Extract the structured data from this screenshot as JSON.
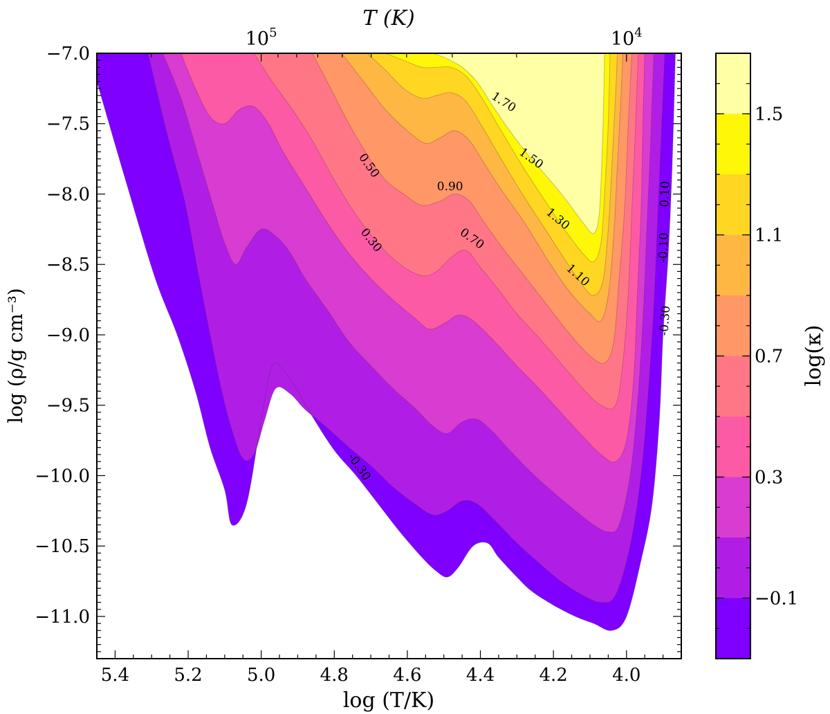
{
  "chart_data": {
    "type": "filled-contour",
    "title": "",
    "xlabel": "log (T/K)",
    "ylabel": "log (ρ/g cm⁻³)",
    "top_xlabel": "T (K)",
    "colorbar_label": "log(κ)",
    "xlim": [
      5.45,
      3.85
    ],
    "ylim": [
      -11.3,
      -7.0
    ],
    "x_ticks": [
      5.4,
      5.2,
      5.0,
      4.8,
      4.6,
      4.4,
      4.2,
      4.0
    ],
    "x_tick_labels": [
      "5.4",
      "5.2",
      "5.0",
      "4.8",
      "4.6",
      "4.4",
      "4.2",
      "4.0"
    ],
    "y_ticks": [
      -7.0,
      -7.5,
      -8.0,
      -8.5,
      -9.0,
      -9.5,
      -10.0,
      -10.5,
      -11.0
    ],
    "y_tick_labels": [
      "−7.0",
      "−7.5",
      "−8.0",
      "−8.5",
      "−9.0",
      "−9.5",
      "−10.0",
      "−10.5",
      "−11.0"
    ],
    "top_ticks": [
      {
        "logT": 5.0,
        "base": "10",
        "exp": "5"
      },
      {
        "logT": 4.0,
        "base": "10",
        "exp": "4"
      }
    ],
    "colorbar_ticks": [
      -0.1,
      0.3,
      0.7,
      1.1,
      1.5
    ],
    "colorbar_tick_labels": [
      "−0.1",
      "0.3",
      "0.7",
      "1.1",
      "1.5"
    ],
    "levels": [
      -0.3,
      -0.1,
      0.1,
      0.3,
      0.5,
      0.7,
      0.9,
      1.1,
      1.3,
      1.5,
      1.7
    ],
    "level_colors": [
      "#7f00ff",
      "#b01ee6",
      "#d93cd0",
      "#fd5aa6",
      "#ff7787",
      "#ff9766",
      "#ffb744",
      "#ffd722",
      "#fff708",
      "#ffffa6"
    ],
    "contour_labels": [
      {
        "text": "1.70",
        "logT": 4.337,
        "logRho": -7.35,
        "angle": 33
      },
      {
        "text": "1.50",
        "logT": 4.262,
        "logRho": -7.75,
        "angle": 36
      },
      {
        "text": "1.30",
        "logT": 4.189,
        "logRho": -8.18,
        "angle": 40
      },
      {
        "text": "1.10",
        "logT": 4.134,
        "logRho": -8.58,
        "angle": 42
      },
      {
        "text": "0.90",
        "logT": 4.483,
        "logRho": -7.95,
        "angle": 0
      },
      {
        "text": "0.70",
        "logT": 4.424,
        "logRho": -8.32,
        "angle": 36
      },
      {
        "text": "0.50",
        "logT": 4.706,
        "logRho": -7.8,
        "angle": 55
      },
      {
        "text": "0.30",
        "logT": 4.7,
        "logRho": -8.33,
        "angle": 52
      },
      {
        "text": "0.10",
        "logT": 3.893,
        "logRho": -8.0,
        "angle": -88
      },
      {
        "text": "-0.10",
        "logT": 3.897,
        "logRho": -8.38,
        "angle": -88
      },
      {
        "text": "-0.30",
        "logT": 3.893,
        "logRho": -8.9,
        "angle": -86
      },
      {
        "text": "-0.30",
        "logT": 4.733,
        "logRho": -9.94,
        "angle": 55
      }
    ],
    "boundaries": [
      {
        "level": "-0.3",
        "points": [
          [
            5.45,
            -7.2
          ],
          [
            5.36,
            -8.0
          ],
          [
            5.29,
            -8.6
          ],
          [
            5.23,
            -9.0
          ],
          [
            5.18,
            -9.4
          ],
          [
            5.14,
            -9.8
          ],
          [
            5.1,
            -10.1
          ],
          [
            5.08,
            -10.35
          ],
          [
            5.04,
            -10.2
          ],
          [
            5.0,
            -9.6
          ],
          [
            4.97,
            -9.22
          ],
          [
            4.94,
            -9.25
          ],
          [
            4.9,
            -9.4
          ],
          [
            4.86,
            -9.58
          ],
          [
            4.8,
            -9.82
          ],
          [
            4.74,
            -10.0
          ],
          [
            4.68,
            -10.2
          ],
          [
            4.62,
            -10.4
          ],
          [
            4.56,
            -10.58
          ],
          [
            4.52,
            -10.68
          ],
          [
            4.49,
            -10.72
          ],
          [
            4.46,
            -10.65
          ],
          [
            4.42,
            -10.5
          ],
          [
            4.38,
            -10.48
          ],
          [
            4.35,
            -10.58
          ],
          [
            4.3,
            -10.72
          ],
          [
            4.26,
            -10.82
          ],
          [
            4.2,
            -10.92
          ],
          [
            4.14,
            -11.0
          ],
          [
            4.09,
            -11.05
          ],
          [
            4.04,
            -11.1
          ],
          [
            4.0,
            -11.0
          ],
          [
            3.96,
            -10.6
          ],
          [
            3.93,
            -10.2
          ],
          [
            3.91,
            -9.6
          ],
          [
            3.9,
            -9.0
          ],
          [
            3.885,
            -8.4
          ],
          [
            3.875,
            -7.8
          ],
          [
            3.866,
            -7.0
          ]
        ]
      },
      {
        "level": "-0.1",
        "points": [
          [
            5.31,
            -7.0
          ],
          [
            5.26,
            -7.55
          ],
          [
            5.21,
            -8.05
          ],
          [
            5.17,
            -8.6
          ],
          [
            5.14,
            -9.0
          ],
          [
            5.11,
            -9.38
          ],
          [
            5.08,
            -9.68
          ],
          [
            5.05,
            -9.88
          ],
          [
            5.02,
            -9.85
          ],
          [
            4.99,
            -9.6
          ],
          [
            4.96,
            -9.38
          ],
          [
            4.92,
            -9.42
          ],
          [
            4.88,
            -9.53
          ],
          [
            4.82,
            -9.66
          ],
          [
            4.76,
            -9.8
          ],
          [
            4.7,
            -9.93
          ],
          [
            4.64,
            -10.08
          ],
          [
            4.58,
            -10.2
          ],
          [
            4.53,
            -10.28
          ],
          [
            4.49,
            -10.25
          ],
          [
            4.45,
            -10.18
          ],
          [
            4.41,
            -10.2
          ],
          [
            4.36,
            -10.32
          ],
          [
            4.3,
            -10.48
          ],
          [
            4.24,
            -10.62
          ],
          [
            4.18,
            -10.75
          ],
          [
            4.12,
            -10.85
          ],
          [
            4.07,
            -10.9
          ],
          [
            4.03,
            -10.85
          ],
          [
            3.99,
            -10.5
          ],
          [
            3.96,
            -10.0
          ],
          [
            3.94,
            -9.4
          ],
          [
            3.925,
            -8.8
          ],
          [
            3.915,
            -8.2
          ],
          [
            3.905,
            -7.6
          ],
          [
            3.895,
            -7.0
          ]
        ]
      },
      {
        "level": "0.1",
        "points": [
          [
            5.27,
            -7.0
          ],
          [
            5.22,
            -7.32
          ],
          [
            5.17,
            -7.75
          ],
          [
            5.13,
            -8.1
          ],
          [
            5.1,
            -8.35
          ],
          [
            5.07,
            -8.5
          ],
          [
            5.04,
            -8.38
          ],
          [
            5.0,
            -8.25
          ],
          [
            4.96,
            -8.3
          ],
          [
            4.92,
            -8.42
          ],
          [
            4.88,
            -8.6
          ],
          [
            4.82,
            -8.82
          ],
          [
            4.76,
            -9.05
          ],
          [
            4.7,
            -9.22
          ],
          [
            4.64,
            -9.38
          ],
          [
            4.58,
            -9.52
          ],
          [
            4.53,
            -9.65
          ],
          [
            4.49,
            -9.7
          ],
          [
            4.45,
            -9.62
          ],
          [
            4.41,
            -9.6
          ],
          [
            4.37,
            -9.68
          ],
          [
            4.32,
            -9.82
          ],
          [
            4.26,
            -9.98
          ],
          [
            4.2,
            -10.12
          ],
          [
            4.14,
            -10.25
          ],
          [
            4.09,
            -10.35
          ],
          [
            4.05,
            -10.4
          ],
          [
            4.02,
            -10.35
          ],
          [
            3.99,
            -10.0
          ],
          [
            3.97,
            -9.5
          ],
          [
            3.955,
            -8.9
          ],
          [
            3.945,
            -8.3
          ],
          [
            3.935,
            -7.7
          ],
          [
            3.925,
            -7.0
          ]
        ]
      },
      {
        "level": "0.3",
        "points": [
          [
            5.22,
            -7.0
          ],
          [
            5.18,
            -7.25
          ],
          [
            5.14,
            -7.45
          ],
          [
            5.1,
            -7.5
          ],
          [
            5.06,
            -7.4
          ],
          [
            5.02,
            -7.38
          ],
          [
            4.98,
            -7.5
          ],
          [
            4.94,
            -7.7
          ],
          [
            4.88,
            -7.95
          ],
          [
            4.82,
            -8.2
          ],
          [
            4.76,
            -8.42
          ],
          [
            4.7,
            -8.6
          ],
          [
            4.64,
            -8.75
          ],
          [
            4.58,
            -8.88
          ],
          [
            4.54,
            -8.96
          ],
          [
            4.5,
            -8.92
          ],
          [
            4.46,
            -8.86
          ],
          [
            4.42,
            -8.9
          ],
          [
            4.36,
            -9.05
          ],
          [
            4.3,
            -9.22
          ],
          [
            4.24,
            -9.38
          ],
          [
            4.18,
            -9.55
          ],
          [
            4.12,
            -9.72
          ],
          [
            4.07,
            -9.85
          ],
          [
            4.03,
            -9.9
          ],
          [
            4.0,
            -9.75
          ],
          [
            3.98,
            -9.3
          ],
          [
            3.97,
            -8.7
          ],
          [
            3.96,
            -8.1
          ],
          [
            3.955,
            -7.5
          ],
          [
            3.95,
            -7.0
          ]
        ]
      },
      {
        "level": "0.5",
        "points": [
          [
            5.02,
            -7.0
          ],
          [
            4.97,
            -7.2
          ],
          [
            4.92,
            -7.38
          ],
          [
            4.86,
            -7.62
          ],
          [
            4.8,
            -7.9
          ],
          [
            4.74,
            -8.15
          ],
          [
            4.68,
            -8.35
          ],
          [
            4.62,
            -8.5
          ],
          [
            4.56,
            -8.58
          ],
          [
            4.52,
            -8.55
          ],
          [
            4.48,
            -8.45
          ],
          [
            4.44,
            -8.4
          ],
          [
            4.4,
            -8.52
          ],
          [
            4.35,
            -8.68
          ],
          [
            4.3,
            -8.85
          ],
          [
            4.24,
            -9.02
          ],
          [
            4.18,
            -9.2
          ],
          [
            4.12,
            -9.38
          ],
          [
            4.07,
            -9.5
          ],
          [
            4.03,
            -9.5
          ],
          [
            4.01,
            -9.2
          ],
          [
            3.995,
            -8.7
          ],
          [
            3.985,
            -8.1
          ],
          [
            3.975,
            -7.5
          ],
          [
            3.968,
            -7.0
          ]
        ]
      },
      {
        "level": "0.7",
        "points": [
          [
            4.86,
            -7.0
          ],
          [
            4.81,
            -7.25
          ],
          [
            4.76,
            -7.5
          ],
          [
            4.71,
            -7.72
          ],
          [
            4.66,
            -7.9
          ],
          [
            4.61,
            -8.0
          ],
          [
            4.56,
            -8.08
          ],
          [
            4.51,
            -8.05
          ],
          [
            4.47,
            -8.0
          ],
          [
            4.43,
            -8.05
          ],
          [
            4.39,
            -8.2
          ],
          [
            4.34,
            -8.38
          ],
          [
            4.28,
            -8.58
          ],
          [
            4.22,
            -8.78
          ],
          [
            4.16,
            -8.98
          ],
          [
            4.1,
            -9.15
          ],
          [
            4.06,
            -9.2
          ],
          [
            4.035,
            -9.05
          ],
          [
            4.02,
            -8.6
          ],
          [
            4.005,
            -8.1
          ],
          [
            3.995,
            -7.5
          ],
          [
            3.985,
            -7.0
          ]
        ]
      },
      {
        "level": "0.9",
        "points": [
          [
            4.78,
            -7.0
          ],
          [
            4.72,
            -7.2
          ],
          [
            4.66,
            -7.4
          ],
          [
            4.6,
            -7.55
          ],
          [
            4.55,
            -7.64
          ],
          [
            4.51,
            -7.6
          ],
          [
            4.47,
            -7.55
          ],
          [
            4.43,
            -7.62
          ],
          [
            4.39,
            -7.78
          ],
          [
            4.34,
            -7.98
          ],
          [
            4.28,
            -8.2
          ],
          [
            4.22,
            -8.45
          ],
          [
            4.16,
            -8.68
          ],
          [
            4.1,
            -8.85
          ],
          [
            4.07,
            -8.9
          ],
          [
            4.05,
            -8.72
          ],
          [
            4.035,
            -8.3
          ],
          [
            4.025,
            -7.8
          ],
          [
            4.015,
            -7.3
          ],
          [
            4.01,
            -7.0
          ]
        ]
      },
      {
        "level": "1.1",
        "points": [
          [
            4.71,
            -7.0
          ],
          [
            4.66,
            -7.12
          ],
          [
            4.61,
            -7.25
          ],
          [
            4.56,
            -7.32
          ],
          [
            4.52,
            -7.3
          ],
          [
            4.48,
            -7.28
          ],
          [
            4.44,
            -7.34
          ],
          [
            4.4,
            -7.5
          ],
          [
            4.35,
            -7.72
          ],
          [
            4.29,
            -7.98
          ],
          [
            4.23,
            -8.22
          ],
          [
            4.17,
            -8.46
          ],
          [
            4.12,
            -8.65
          ],
          [
            4.09,
            -8.72
          ],
          [
            4.065,
            -8.62
          ],
          [
            4.05,
            -8.25
          ],
          [
            4.04,
            -7.8
          ],
          [
            4.03,
            -7.3
          ],
          [
            4.025,
            -7.0
          ]
        ]
      },
      {
        "level": "1.3",
        "points": [
          [
            4.66,
            -7.0
          ],
          [
            4.61,
            -7.05
          ],
          [
            4.56,
            -7.1
          ],
          [
            4.52,
            -7.1
          ],
          [
            4.48,
            -7.1
          ],
          [
            4.44,
            -7.16
          ],
          [
            4.4,
            -7.3
          ],
          [
            4.35,
            -7.52
          ],
          [
            4.29,
            -7.78
          ],
          [
            4.23,
            -8.02
          ],
          [
            4.17,
            -8.25
          ],
          [
            4.12,
            -8.42
          ],
          [
            4.09,
            -8.48
          ],
          [
            4.07,
            -8.35
          ],
          [
            4.06,
            -8.0
          ],
          [
            4.05,
            -7.5
          ],
          [
            4.045,
            -7.0
          ]
        ]
      },
      {
        "level": "1.5",
        "points": [
          [
            4.53,
            -7.0
          ],
          [
            4.49,
            -7.04
          ],
          [
            4.45,
            -7.1
          ],
          [
            4.41,
            -7.2
          ],
          [
            4.37,
            -7.36
          ],
          [
            4.32,
            -7.55
          ],
          [
            4.27,
            -7.72
          ],
          [
            4.21,
            -7.9
          ],
          [
            4.16,
            -8.06
          ],
          [
            4.12,
            -8.2
          ],
          [
            4.09,
            -8.28
          ],
          [
            4.075,
            -8.15
          ],
          [
            4.068,
            -7.8
          ],
          [
            4.063,
            -7.4
          ],
          [
            4.06,
            -7.0
          ]
        ]
      }
    ]
  }
}
